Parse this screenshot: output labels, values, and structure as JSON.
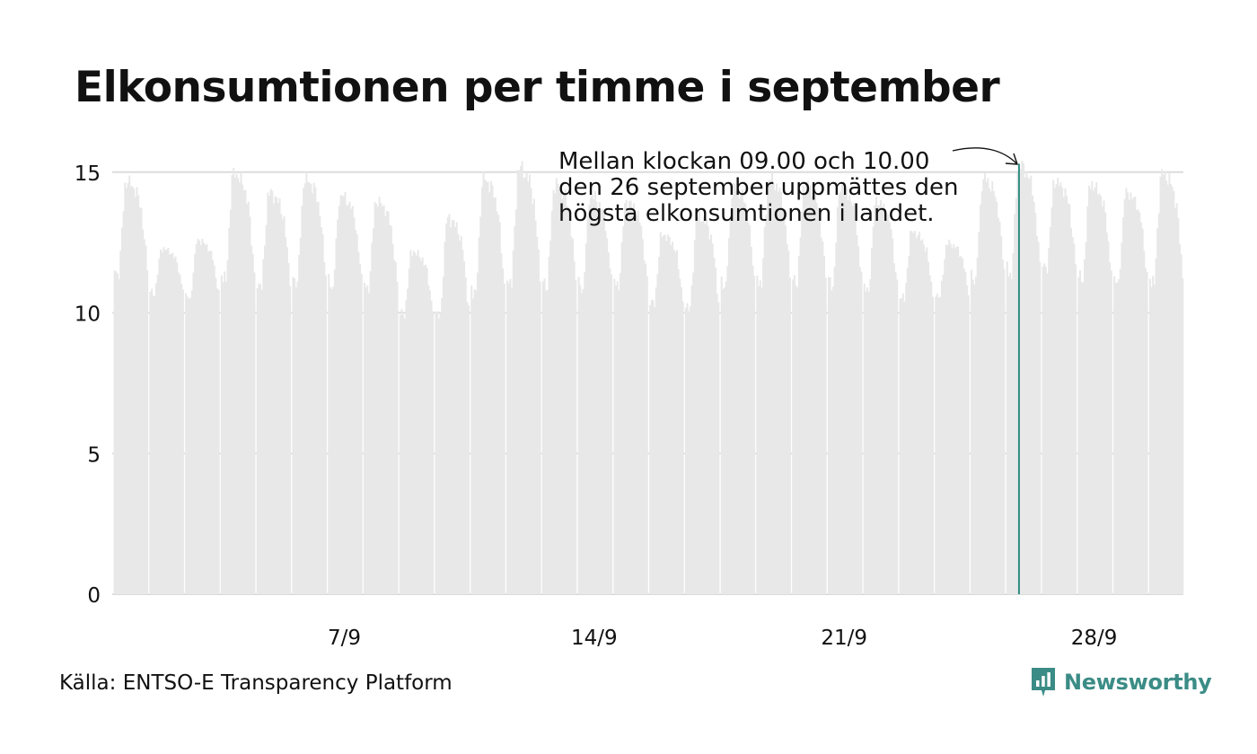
{
  "title": "Elkonsumtionen per timme i september",
  "source": "Källa: ENTSO-E Transparency Platform",
  "brand": {
    "name": "Newsworthy",
    "color": "#3b8c86"
  },
  "annotation": {
    "lines": [
      "Mellan klockan 09.00 och 10.00",
      "den 26 september uppmättes den",
      "högsta elkonsumtionen i landet."
    ]
  },
  "chart_data": {
    "type": "bar",
    "x_unit": "hour of September",
    "ylim": [
      0,
      15.5
    ],
    "yticks": [
      0,
      5,
      10,
      15
    ],
    "xticks": [
      {
        "label": "7/9",
        "day": 7
      },
      {
        "label": "14/9",
        "day": 14
      },
      {
        "label": "21/9",
        "day": 21
      },
      {
        "label": "28/9",
        "day": 28
      }
    ],
    "grid": true,
    "bar_color": "#e8e8e8",
    "highlight_color": "#2e8b83",
    "highlight": {
      "day": 26,
      "hour": 9,
      "value": 15.3
    },
    "daily": [
      {
        "day": 1,
        "night": 11.2,
        "peak": 14.7
      },
      {
        "day": 2,
        "night": 10.6,
        "peak": 12.3
      },
      {
        "day": 3,
        "night": 10.4,
        "peak": 12.6
      },
      {
        "day": 4,
        "night": 11.0,
        "peak": 15.0
      },
      {
        "day": 5,
        "night": 10.8,
        "peak": 14.3
      },
      {
        "day": 6,
        "night": 10.9,
        "peak": 14.8
      },
      {
        "day": 7,
        "night": 10.8,
        "peak": 14.2
      },
      {
        "day": 8,
        "night": 10.7,
        "peak": 14.0
      },
      {
        "day": 9,
        "night": 9.8,
        "peak": 12.2
      },
      {
        "day": 10,
        "night": 9.7,
        "peak": 13.4
      },
      {
        "day": 11,
        "night": 10.5,
        "peak": 14.8
      },
      {
        "day": 12,
        "night": 10.9,
        "peak": 15.2
      },
      {
        "day": 13,
        "night": 10.8,
        "peak": 14.6
      },
      {
        "day": 14,
        "night": 10.7,
        "peak": 14.2
      },
      {
        "day": 15,
        "night": 10.8,
        "peak": 14.0
      },
      {
        "day": 16,
        "night": 10.2,
        "peak": 12.8
      },
      {
        "day": 17,
        "night": 10.0,
        "peak": 13.5
      },
      {
        "day": 18,
        "night": 10.8,
        "peak": 14.5
      },
      {
        "day": 19,
        "night": 10.9,
        "peak": 14.8
      },
      {
        "day": 20,
        "night": 10.9,
        "peak": 14.6
      },
      {
        "day": 21,
        "night": 10.8,
        "peak": 14.5
      },
      {
        "day": 22,
        "night": 10.6,
        "peak": 14.0
      },
      {
        "day": 23,
        "night": 10.4,
        "peak": 12.9
      },
      {
        "day": 24,
        "night": 10.5,
        "peak": 12.5
      },
      {
        "day": 25,
        "night": 11.0,
        "peak": 14.8
      },
      {
        "day": 26,
        "night": 11.2,
        "peak": 15.3
      },
      {
        "day": 27,
        "night": 11.4,
        "peak": 14.7
      },
      {
        "day": 28,
        "night": 11.0,
        "peak": 14.6
      },
      {
        "day": 29,
        "night": 10.9,
        "peak": 14.3
      },
      {
        "day": 30,
        "night": 10.9,
        "peak": 15.0
      }
    ]
  }
}
